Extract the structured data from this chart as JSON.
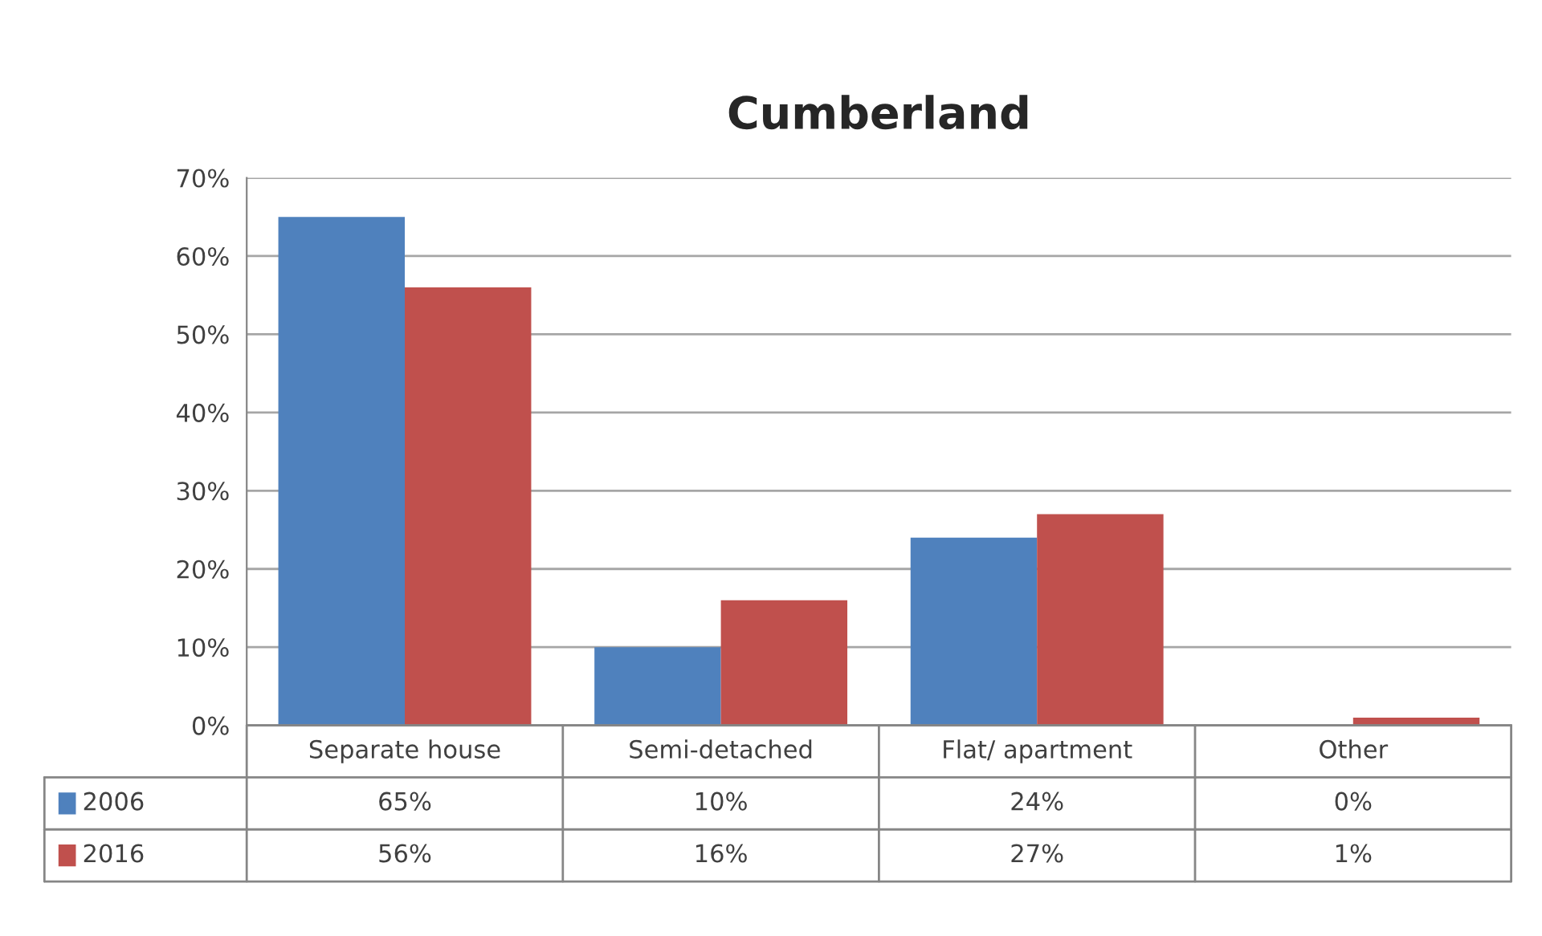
{
  "chart_data": {
    "type": "bar",
    "title": "Cumberland",
    "categories": [
      "Separate house",
      "Semi-detached",
      "Flat/ apartment",
      "Other"
    ],
    "series": [
      {
        "name": "2006",
        "color": "#4f81bd",
        "values": [
          65,
          10,
          24,
          0
        ],
        "value_labels": [
          "65%",
          "10%",
          "24%",
          "0%"
        ]
      },
      {
        "name": "2016",
        "color": "#c0504d",
        "values": [
          56,
          16,
          27,
          1
        ],
        "value_labels": [
          "56%",
          "16%",
          "27%",
          "1%"
        ]
      }
    ],
    "ylim": [
      0,
      70
    ],
    "yticks": [
      {
        "value": 0,
        "label": "0%"
      },
      {
        "value": 10,
        "label": "10%"
      },
      {
        "value": 20,
        "label": "20%"
      },
      {
        "value": 30,
        "label": "30%"
      },
      {
        "value": 40,
        "label": "40%"
      },
      {
        "value": 50,
        "label": "50%"
      },
      {
        "value": 60,
        "label": "60%"
      },
      {
        "value": 70,
        "label": "70%"
      }
    ],
    "grid": "y",
    "legend": "bottom"
  }
}
